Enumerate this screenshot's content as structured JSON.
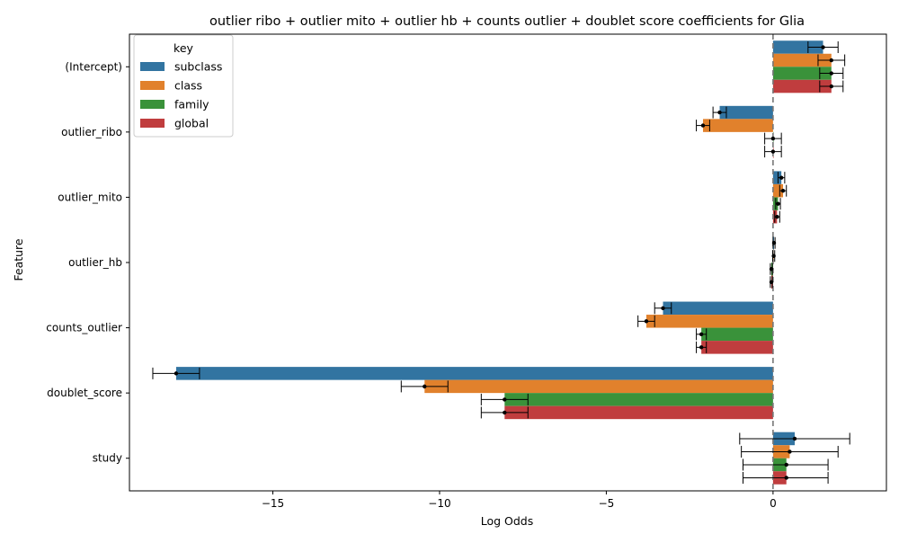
{
  "chart_data": {
    "type": "bar",
    "orientation": "horizontal",
    "title": "outlier ribo + outlier mito + outlier hb + counts outlier + doublet score coefficients for Glia",
    "xlabel": "Log Odds",
    "ylabel": "Feature",
    "xlim": [
      -19.3,
      3.4
    ],
    "xticks": [
      -15,
      -10,
      -5,
      0
    ],
    "xtick_labels": [
      "−15",
      "−10",
      "−5",
      "0"
    ],
    "reference_line": 0,
    "grid": false,
    "legend": {
      "title": "key",
      "placement": "top-left"
    },
    "categories": [
      "(Intercept)",
      "outlier_ribo",
      "outlier_mito",
      "outlier_hb",
      "counts_outlier",
      "doublet_score",
      "study"
    ],
    "series": [
      {
        "name": "subclass",
        "color": "#3274a1",
        "values": [
          1.5,
          -1.6,
          0.25,
          0.03,
          -3.3,
          -17.9,
          0.65
        ],
        "err_low": [
          1.05,
          -1.8,
          0.15,
          0.0,
          -3.55,
          -18.6,
          -1.0
        ],
        "err_high": [
          1.95,
          -1.4,
          0.35,
          0.06,
          -3.05,
          -17.2,
          2.3
        ]
      },
      {
        "name": "class",
        "color": "#e1812c",
        "values": [
          1.75,
          -2.1,
          0.3,
          0.02,
          -3.8,
          -10.45,
          0.5
        ],
        "err_low": [
          1.35,
          -2.3,
          0.2,
          -0.01,
          -4.05,
          -11.15,
          -0.95
        ],
        "err_high": [
          2.15,
          -1.9,
          0.4,
          0.05,
          -3.55,
          -9.75,
          1.95
        ]
      },
      {
        "name": "family",
        "color": "#3a923a",
        "values": [
          1.75,
          0.0,
          0.15,
          -0.05,
          -2.15,
          -8.05,
          0.4
        ],
        "err_low": [
          1.4,
          -0.25,
          0.08,
          -0.08,
          -2.3,
          -8.75,
          -0.9
        ],
        "err_high": [
          2.1,
          0.25,
          0.22,
          -0.02,
          -2.0,
          -7.35,
          1.65
        ]
      },
      {
        "name": "global",
        "color": "#c03d3e",
        "values": [
          1.75,
          0.0,
          0.12,
          -0.05,
          -2.15,
          -8.05,
          0.4
        ],
        "err_low": [
          1.4,
          -0.25,
          0.05,
          -0.08,
          -2.3,
          -8.75,
          -0.9
        ],
        "err_high": [
          2.1,
          0.25,
          0.2,
          -0.02,
          -2.0,
          -7.35,
          1.65
        ]
      }
    ]
  }
}
